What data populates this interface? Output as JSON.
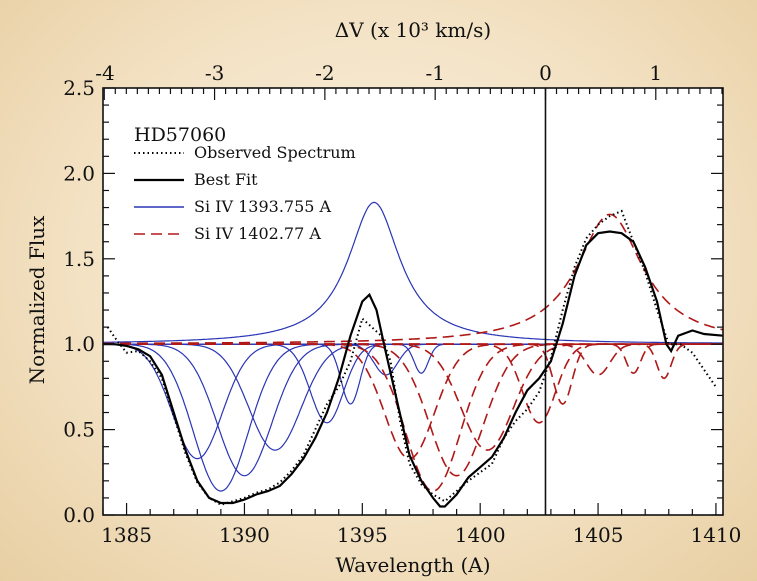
{
  "chart_data": {
    "type": "line",
    "star": "HD57060",
    "xlabel": "Wavelength (A)",
    "ylabel": "Normalized Flux",
    "top_xlabel": "ΔV (x 10³ km/s)",
    "xlim": [
      1384,
      1410.3
    ],
    "ylim": [
      0,
      2.5
    ],
    "x_ticks": [
      "1385",
      "1390",
      "1395",
      "1400",
      "1405",
      "1410"
    ],
    "y_ticks": [
      "0.0",
      "0.5",
      "1.0",
      "1.5",
      "2.0",
      "2.5"
    ],
    "top_ticks": [
      "-4",
      "-3",
      "-2",
      "-1",
      "0",
      "1"
    ],
    "vline_x": 1402.77,
    "legend": [
      {
        "label": "Observed Spectrum",
        "style": "dotted",
        "color": "#000000"
      },
      {
        "label": "Best Fit",
        "style": "solid",
        "color": "#000000"
      },
      {
        "label": "Si IV 1393.755 A",
        "style": "solid",
        "color": "#2a35b5"
      },
      {
        "label": "Si IV 1402.77 A",
        "style": "dashed",
        "color": "#b01818"
      }
    ],
    "blue_components": [
      {
        "center": 1388.0,
        "depth": 0.67,
        "sigma": 1.05
      },
      {
        "center": 1389.0,
        "depth": 0.86,
        "sigma": 1.15
      },
      {
        "center": 1390.0,
        "depth": 0.77,
        "sigma": 1.15
      },
      {
        "center": 1391.3,
        "depth": 0.62,
        "sigma": 1.1
      },
      {
        "center": 1393.5,
        "depth": 0.46,
        "sigma": 0.7
      },
      {
        "center": 1394.5,
        "depth": 0.35,
        "sigma": 0.4
      },
      {
        "center": 1396.0,
        "depth": 0.18,
        "sigma": 0.5
      },
      {
        "center": 1397.5,
        "depth": 0.17,
        "sigma": 0.3
      }
    ],
    "blue_emission": {
      "center": 1395.5,
      "amplitude": 0.83,
      "gamma": 1.35
    },
    "red_components": [
      {
        "center": 1397.0,
        "depth": 0.67,
        "sigma": 1.05
      },
      {
        "center": 1398.0,
        "depth": 0.86,
        "sigma": 1.15
      },
      {
        "center": 1399.0,
        "depth": 0.77,
        "sigma": 1.15
      },
      {
        "center": 1400.3,
        "depth": 0.62,
        "sigma": 1.1
      },
      {
        "center": 1402.5,
        "depth": 0.46,
        "sigma": 0.7
      },
      {
        "center": 1403.5,
        "depth": 0.35,
        "sigma": 0.4
      },
      {
        "center": 1405.0,
        "depth": 0.18,
        "sigma": 0.5
      },
      {
        "center": 1406.5,
        "depth": 0.17,
        "sigma": 0.3
      },
      {
        "center": 1407.8,
        "depth": 0.2,
        "sigma": 0.3
      }
    ],
    "red_emission": {
      "center": 1405.5,
      "amplitude": 0.76,
      "gamma": 1.7
    },
    "best_fit_points": [
      [
        1384.0,
        1.0
      ],
      [
        1384.5,
        1.0
      ],
      [
        1385.0,
        0.99
      ],
      [
        1385.5,
        0.97
      ],
      [
        1386.0,
        0.93
      ],
      [
        1386.5,
        0.82
      ],
      [
        1387.0,
        0.6
      ],
      [
        1387.5,
        0.38
      ],
      [
        1388.0,
        0.2
      ],
      [
        1388.5,
        0.1
      ],
      [
        1389.0,
        0.07
      ],
      [
        1389.5,
        0.07
      ],
      [
        1390.0,
        0.09
      ],
      [
        1390.5,
        0.12
      ],
      [
        1391.0,
        0.14
      ],
      [
        1391.5,
        0.17
      ],
      [
        1392.0,
        0.24
      ],
      [
        1392.5,
        0.33
      ],
      [
        1393.0,
        0.45
      ],
      [
        1393.5,
        0.6
      ],
      [
        1394.0,
        0.8
      ],
      [
        1394.5,
        1.05
      ],
      [
        1395.0,
        1.25
      ],
      [
        1395.3,
        1.29
      ],
      [
        1395.6,
        1.2
      ],
      [
        1396.0,
        0.95
      ],
      [
        1396.5,
        0.65
      ],
      [
        1397.0,
        0.35
      ],
      [
        1397.5,
        0.2
      ],
      [
        1398.0,
        0.1
      ],
      [
        1398.3,
        0.05
      ],
      [
        1398.5,
        0.05
      ],
      [
        1399.0,
        0.12
      ],
      [
        1399.5,
        0.22
      ],
      [
        1400.0,
        0.28
      ],
      [
        1400.5,
        0.34
      ],
      [
        1401.0,
        0.45
      ],
      [
        1401.5,
        0.6
      ],
      [
        1402.0,
        0.73
      ],
      [
        1402.5,
        0.8
      ],
      [
        1403.0,
        0.9
      ],
      [
        1403.5,
        1.12
      ],
      [
        1404.0,
        1.4
      ],
      [
        1404.5,
        1.58
      ],
      [
        1405.0,
        1.65
      ],
      [
        1405.5,
        1.66
      ],
      [
        1406.0,
        1.65
      ],
      [
        1406.5,
        1.6
      ],
      [
        1407.0,
        1.45
      ],
      [
        1407.5,
        1.25
      ],
      [
        1407.9,
        1.0
      ],
      [
        1408.1,
        0.96
      ],
      [
        1408.4,
        1.05
      ],
      [
        1409.0,
        1.08
      ],
      [
        1409.5,
        1.06
      ],
      [
        1410.3,
        1.05
      ]
    ],
    "observed_points": [
      [
        1384.2,
        1.1
      ],
      [
        1384.6,
        1.02
      ],
      [
        1385.0,
        0.95
      ],
      [
        1385.5,
        0.96
      ],
      [
        1386.0,
        0.9
      ],
      [
        1386.5,
        0.8
      ],
      [
        1387.0,
        0.58
      ],
      [
        1387.5,
        0.36
      ],
      [
        1388.0,
        0.19
      ],
      [
        1388.5,
        0.1
      ],
      [
        1389.0,
        0.06
      ],
      [
        1389.5,
        0.08
      ],
      [
        1390.0,
        0.1
      ],
      [
        1390.5,
        0.13
      ],
      [
        1391.0,
        0.15
      ],
      [
        1391.5,
        0.19
      ],
      [
        1392.0,
        0.26
      ],
      [
        1392.5,
        0.35
      ],
      [
        1393.0,
        0.5
      ],
      [
        1393.5,
        0.65
      ],
      [
        1394.0,
        0.75
      ],
      [
        1394.5,
        0.9
      ],
      [
        1395.0,
        1.15
      ],
      [
        1395.4,
        1.1
      ],
      [
        1395.8,
        1.05
      ],
      [
        1396.2,
        0.9
      ],
      [
        1396.6,
        0.55
      ],
      [
        1397.0,
        0.3
      ],
      [
        1397.5,
        0.18
      ],
      [
        1398.0,
        0.12
      ],
      [
        1398.5,
        0.08
      ],
      [
        1399.0,
        0.14
      ],
      [
        1399.5,
        0.2
      ],
      [
        1400.0,
        0.25
      ],
      [
        1400.5,
        0.3
      ],
      [
        1401.0,
        0.45
      ],
      [
        1401.5,
        0.55
      ],
      [
        1402.0,
        0.62
      ],
      [
        1402.5,
        0.72
      ],
      [
        1403.0,
        0.92
      ],
      [
        1403.5,
        1.2
      ],
      [
        1404.0,
        1.45
      ],
      [
        1404.5,
        1.62
      ],
      [
        1405.0,
        1.7
      ],
      [
        1405.5,
        1.75
      ],
      [
        1406.0,
        1.78
      ],
      [
        1406.5,
        1.6
      ],
      [
        1407.0,
        1.42
      ],
      [
        1407.5,
        1.2
      ],
      [
        1408.0,
        1.0
      ],
      [
        1408.5,
        1.0
      ],
      [
        1409.0,
        0.95
      ],
      [
        1409.5,
        0.85
      ],
      [
        1410.0,
        0.75
      ]
    ]
  }
}
